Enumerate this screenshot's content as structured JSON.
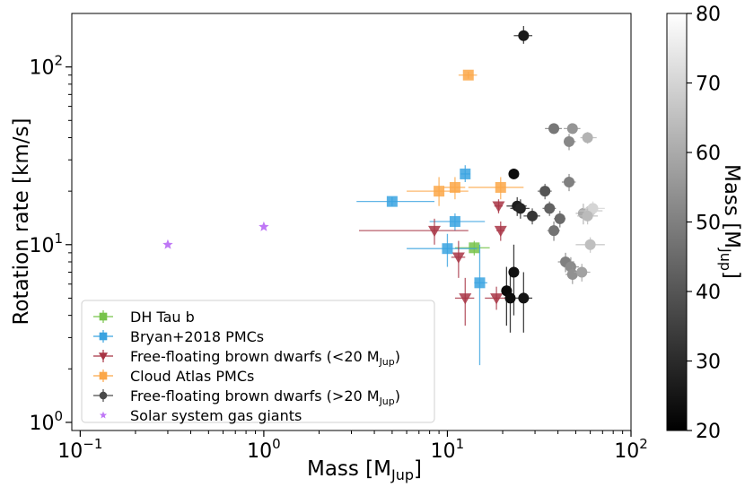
{
  "chart_data": {
    "type": "scatter",
    "xlabel": "Mass [M",
    "xlabel_sub": "Jup",
    "xlabel_end": "]",
    "ylabel": "Rotation rate [km/s]",
    "xscale": "log",
    "yscale": "log",
    "xlim": [
      0.09,
      100
    ],
    "ylim": [
      0.9,
      200
    ],
    "x_ticks": [
      {
        "value": 0.1,
        "base": "10",
        "exp": "−1"
      },
      {
        "value": 1,
        "base": "10",
        "exp": "0"
      },
      {
        "value": 10,
        "base": "10",
        "exp": "1"
      },
      {
        "value": 100,
        "base": "10",
        "exp": "2"
      }
    ],
    "y_ticks": [
      {
        "value": 1,
        "base": "10",
        "exp": "0"
      },
      {
        "value": 10,
        "base": "10",
        "exp": "1"
      },
      {
        "value": 100,
        "base": "10",
        "exp": "2"
      }
    ],
    "colorbar": {
      "label": "Mass [M",
      "label_sub": "Jup",
      "label_end": "]",
      "range": [
        20,
        80
      ],
      "ticks": [
        "20",
        "30",
        "40",
        "50",
        "60",
        "70",
        "80"
      ]
    },
    "legend": [
      {
        "key": "dh",
        "label": "DH Tau b"
      },
      {
        "key": "bryan",
        "label": "Bryan+2018 PMCs"
      },
      {
        "key": "ffbd_low",
        "label": "Free-floating brown dwarfs (<20 M",
        "sub": "Jup",
        "end": ")"
      },
      {
        "key": "cloud",
        "label": "Cloud Atlas PMCs"
      },
      {
        "key": "ffbd_high",
        "label": "Free-floating brown dwarfs (>20 M",
        "sub": "Jup",
        "end": ")"
      },
      {
        "key": "solar",
        "label": "Solar system gas giants"
      }
    ],
    "series": [
      {
        "key": "dh",
        "name": "DH Tau b",
        "marker": "square",
        "color": "#77c34a",
        "points": [
          {
            "x": 14,
            "y": 9.6,
            "xlo": 11,
            "xhi": 17,
            "ylo": 8.7,
            "yhi": 10.5
          }
        ]
      },
      {
        "key": "bryan",
        "name": "Bryan+2018 PMCs",
        "marker": "square",
        "color": "#3aa3e0",
        "points": [
          {
            "x": 5,
            "y": 17.5,
            "xlo": 3.2,
            "xhi": 8.5,
            "ylo": 16.5,
            "yhi": 18.5
          },
          {
            "x": 12.5,
            "y": 25,
            "xlo": 11.8,
            "xhi": 13.3,
            "ylo": 22.5,
            "yhi": 28
          },
          {
            "x": 11,
            "y": 13.5,
            "xlo": 8,
            "xhi": 16,
            "ylo": 12,
            "yhi": 15
          },
          {
            "x": 10,
            "y": 9.5,
            "xlo": 6,
            "xhi": 14.5,
            "ylo": 7.5,
            "yhi": 11.5
          },
          {
            "x": 15,
            "y": 6.1,
            "xlo": 14,
            "xhi": 16.5,
            "ylo": 2.1,
            "yhi": 10
          }
        ]
      },
      {
        "key": "ffbd_low",
        "name": "Free-floating brown dwarfs (<20 MJup)",
        "marker": "triangle-down",
        "color": "#a83545",
        "points": [
          {
            "x": 8.5,
            "y": 12,
            "xlo": 3.3,
            "xhi": 13,
            "ylo": 10,
            "yhi": 14
          },
          {
            "x": 11.5,
            "y": 8.5,
            "xlo": 10.5,
            "xhi": 12.5,
            "ylo": 6.5,
            "yhi": 10.5
          },
          {
            "x": 12.5,
            "y": 5,
            "xlo": 11,
            "xhi": 14,
            "ylo": 3.5,
            "yhi": 6.5
          },
          {
            "x": 18.5,
            "y": 5,
            "xlo": 16,
            "xhi": 21,
            "ylo": 4.3,
            "yhi": 5.8
          },
          {
            "x": 19,
            "y": 16.5,
            "xlo": 18,
            "xhi": 20,
            "ylo": 15,
            "yhi": 18
          },
          {
            "x": 19.5,
            "y": 12,
            "xlo": 18.5,
            "xhi": 20.5,
            "ylo": 10.5,
            "yhi": 13.5
          }
        ]
      },
      {
        "key": "cloud",
        "name": "Cloud Atlas PMCs",
        "marker": "square",
        "color": "#fba748",
        "points": [
          {
            "x": 13,
            "y": 90,
            "xlo": 11.5,
            "xhi": 14.5,
            "ylo": 86,
            "yhi": 94
          },
          {
            "x": 9,
            "y": 20,
            "xlo": 6,
            "xhi": 13,
            "ylo": 16.5,
            "yhi": 24
          },
          {
            "x": 11,
            "y": 21,
            "xlo": 9.5,
            "xhi": 12.5,
            "ylo": 18,
            "yhi": 24
          },
          {
            "x": 19.5,
            "y": 21,
            "xlo": 13,
            "xhi": 26,
            "ylo": 18,
            "yhi": 24
          }
        ]
      },
      {
        "key": "ffbd_high",
        "name": "Free-floating brown dwarfs (>20 MJup)",
        "marker": "circle",
        "color": "colormap",
        "points": [
          {
            "x": 26,
            "y": 150,
            "m": 26,
            "xlo": 23,
            "xhi": 29,
            "ylo": 135,
            "yhi": 170
          },
          {
            "x": 23,
            "y": 25,
            "m": 23,
            "xlo": 22,
            "xhi": 24,
            "ylo": 23.5,
            "yhi": 26.5
          },
          {
            "x": 24,
            "y": 16.5,
            "m": 27,
            "xlo": 21,
            "xhi": 27,
            "ylo": 14.5,
            "yhi": 18.5
          },
          {
            "x": 25,
            "y": 16,
            "m": 29,
            "xlo": 22,
            "xhi": 28,
            "ylo": 14,
            "yhi": 18
          },
          {
            "x": 29,
            "y": 14.5,
            "m": 33,
            "xlo": 26,
            "xhi": 32,
            "ylo": 13,
            "yhi": 16
          },
          {
            "x": 34,
            "y": 20,
            "m": 40,
            "xlo": 31,
            "xhi": 37,
            "ylo": 18,
            "yhi": 22
          },
          {
            "x": 36,
            "y": 16,
            "m": 43,
            "xlo": 33,
            "xhi": 39,
            "ylo": 14.5,
            "yhi": 17.5
          },
          {
            "x": 41,
            "y": 14,
            "m": 45,
            "xlo": 38,
            "xhi": 44,
            "ylo": 12.5,
            "yhi": 15.5
          },
          {
            "x": 38,
            "y": 12,
            "m": 47,
            "xlo": 35,
            "xhi": 41,
            "ylo": 10.5,
            "yhi": 13.5
          },
          {
            "x": 46,
            "y": 22.5,
            "m": 50,
            "xlo": 42,
            "xhi": 50,
            "ylo": 20,
            "yhi": 25
          },
          {
            "x": 38,
            "y": 45,
            "m": 48,
            "xlo": 34,
            "xhi": 42,
            "ylo": 42,
            "yhi": 48
          },
          {
            "x": 46,
            "y": 38,
            "m": 52,
            "xlo": 43,
            "xhi": 50,
            "ylo": 34,
            "yhi": 42
          },
          {
            "x": 48,
            "y": 45,
            "m": 55,
            "xlo": 43,
            "xhi": 53,
            "ylo": 42,
            "yhi": 48
          },
          {
            "x": 58,
            "y": 40,
            "m": 62,
            "xlo": 53,
            "xhi": 65,
            "ylo": 37,
            "yhi": 43
          },
          {
            "x": 55,
            "y": 15,
            "m": 60,
            "xlo": 50,
            "xhi": 62,
            "ylo": 13,
            "yhi": 17
          },
          {
            "x": 60,
            "y": 15.5,
            "m": 66,
            "xlo": 52,
            "xhi": 70,
            "ylo": 14,
            "yhi": 17
          },
          {
            "x": 62,
            "y": 16,
            "m": 70,
            "xlo": 55,
            "xhi": 72,
            "ylo": 14.5,
            "yhi": 17.5
          },
          {
            "x": 58,
            "y": 14.5,
            "m": 64,
            "xlo": 51,
            "xhi": 66,
            "ylo": 13,
            "yhi": 16
          },
          {
            "x": 60,
            "y": 10,
            "m": 65,
            "xlo": 50,
            "xhi": 72,
            "ylo": 9,
            "yhi": 11
          },
          {
            "x": 44,
            "y": 8,
            "m": 50,
            "xlo": 40,
            "xhi": 49,
            "ylo": 7,
            "yhi": 9
          },
          {
            "x": 47,
            "y": 7.5,
            "m": 53,
            "xlo": 43,
            "xhi": 52,
            "ylo": 6.5,
            "yhi": 8.5
          },
          {
            "x": 48,
            "y": 6.8,
            "m": 54,
            "xlo": 44,
            "xhi": 53,
            "ylo": 6,
            "yhi": 7.6
          },
          {
            "x": 54,
            "y": 7,
            "m": 58,
            "xlo": 49,
            "xhi": 60,
            "ylo": 6.2,
            "yhi": 7.8
          },
          {
            "x": 23,
            "y": 7,
            "m": 24,
            "xlo": 22,
            "xhi": 24,
            "ylo": 4,
            "yhi": 10
          },
          {
            "x": 21,
            "y": 5.5,
            "m": 22,
            "xlo": 20,
            "xhi": 22,
            "ylo": 3.5,
            "yhi": 7.5
          },
          {
            "x": 22,
            "y": 5,
            "m": 23,
            "xlo": 21,
            "xhi": 23,
            "ylo": 3.2,
            "yhi": 7
          },
          {
            "x": 26,
            "y": 5,
            "m": 25,
            "xlo": 23,
            "xhi": 29,
            "ylo": 3.2,
            "yhi": 7
          }
        ]
      },
      {
        "key": "solar",
        "name": "Solar system gas giants",
        "marker": "star",
        "color": "#bf77f6",
        "points": [
          {
            "x": 0.3,
            "y": 10
          },
          {
            "x": 1.0,
            "y": 12.6
          }
        ]
      }
    ]
  }
}
